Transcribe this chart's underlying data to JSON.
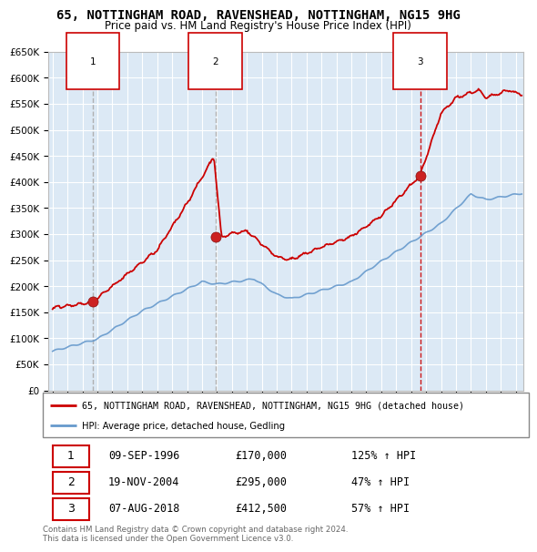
{
  "title": "65, NOTTINGHAM ROAD, RAVENSHEAD, NOTTINGHAM, NG15 9HG",
  "subtitle": "Price paid vs. HM Land Registry's House Price Index (HPI)",
  "ylim": [
    0,
    650000
  ],
  "yticks": [
    0,
    50000,
    100000,
    150000,
    200000,
    250000,
    300000,
    350000,
    400000,
    450000,
    500000,
    550000,
    600000,
    650000
  ],
  "xlim_start": 1993.7,
  "xlim_end": 2025.5,
  "sale_dates": [
    1996.69,
    2004.89,
    2018.6
  ],
  "sale_prices": [
    170000,
    295000,
    412500
  ],
  "sale_labels": [
    "1",
    "2",
    "3"
  ],
  "vline_colors": [
    "#aaaaaa",
    "#aaaaaa",
    "#cc0000"
  ],
  "legend_line1": "65, NOTTINGHAM ROAD, RAVENSHEAD, NOTTINGHAM, NG15 9HG (detached house)",
  "legend_line2": "HPI: Average price, detached house, Gedling",
  "table_data": [
    [
      "1",
      "09-SEP-1996",
      "£170,000",
      "125% ↑ HPI"
    ],
    [
      "2",
      "19-NOV-2004",
      "£295,000",
      "47% ↑ HPI"
    ],
    [
      "3",
      "07-AUG-2018",
      "£412,500",
      "57% ↑ HPI"
    ]
  ],
  "footer": "Contains HM Land Registry data © Crown copyright and database right 2024.\nThis data is licensed under the Open Government Licence v3.0.",
  "line_color_red": "#cc0000",
  "line_color_blue": "#6699cc",
  "bg_color": "#dce9f5",
  "grid_color": "#ffffff",
  "title_fontsize": 10,
  "subtitle_fontsize": 8.5,
  "axis_fontsize": 7.5
}
